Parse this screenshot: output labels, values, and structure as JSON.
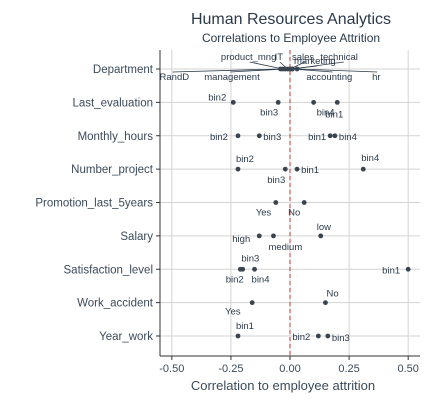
{
  "chart_data": {
    "type": "scatter",
    "title": "Human Resources Analytics",
    "subtitle": "Correlations to Employee Attrition",
    "xlabel": "Correlation to employee attrition",
    "ylabel": "",
    "xlim": [
      -0.55,
      0.55
    ],
    "xticks": [
      "-0.50",
      "-0.25",
      "0.00",
      "0.25",
      "0.50"
    ],
    "xtick_values": [
      -0.5,
      -0.25,
      0,
      0.25,
      0.5
    ],
    "grid": true,
    "zero_line_color": "#c0392b",
    "point_color": "#3a4450",
    "categories": [
      "Department",
      "Last_evaluation",
      "Monthly_hours",
      "Number_project",
      "Promotion_last_5years",
      "Salary",
      "Satisfaction_level",
      "Work_accident",
      "Year_work"
    ],
    "points": [
      {
        "category": "Department",
        "label": "product_mng",
        "x": -0.03
      },
      {
        "category": "Department",
        "label": "IT",
        "x": -0.01
      },
      {
        "category": "Department",
        "label": "sales",
        "x": 0.0
      },
      {
        "category": "Department",
        "label": "technical",
        "x": 0.01
      },
      {
        "category": "Department",
        "label": "RandD",
        "x": -0.04
      },
      {
        "category": "Department",
        "label": "management",
        "x": -0.02
      },
      {
        "category": "Department",
        "label": "accounting",
        "x": 0.01
      },
      {
        "category": "Department",
        "label": "hr",
        "x": 0.03
      },
      {
        "category": "Department",
        "label": "marketing",
        "x": 0.0
      },
      {
        "category": "Last_evaluation",
        "label": "bin2",
        "x": -0.24
      },
      {
        "category": "Last_evaluation",
        "label": "bin3",
        "x": -0.05
      },
      {
        "category": "Last_evaluation",
        "label": "bin4",
        "x": 0.1
      },
      {
        "category": "Last_evaluation",
        "label": "bin1",
        "x": 0.2
      },
      {
        "category": "Monthly_hours",
        "label": "bin2",
        "x": -0.22
      },
      {
        "category": "Monthly_hours",
        "label": "bin3",
        "x": -0.13
      },
      {
        "category": "Monthly_hours",
        "label": "bin1",
        "x": 0.17
      },
      {
        "category": "Monthly_hours",
        "label": "bin4",
        "x": 0.19
      },
      {
        "category": "Number_project",
        "label": "bin2",
        "x": -0.22
      },
      {
        "category": "Number_project",
        "label": "bin3",
        "x": -0.02
      },
      {
        "category": "Number_project",
        "label": "bin1",
        "x": 0.03
      },
      {
        "category": "Number_project",
        "label": "bin4",
        "x": 0.31
      },
      {
        "category": "Promotion_last_5years",
        "label": "Yes",
        "x": -0.06
      },
      {
        "category": "Promotion_last_5years",
        "label": "No",
        "x": 0.06
      },
      {
        "category": "Salary",
        "label": "high",
        "x": -0.13
      },
      {
        "category": "Salary",
        "label": "medium",
        "x": -0.07
      },
      {
        "category": "Salary",
        "label": "low",
        "x": 0.13
      },
      {
        "category": "Satisfaction_level",
        "label": "bin3",
        "x": -0.21
      },
      {
        "category": "Satisfaction_level",
        "label": "bin2",
        "x": -0.2
      },
      {
        "category": "Satisfaction_level",
        "label": "bin4",
        "x": -0.15
      },
      {
        "category": "Satisfaction_level",
        "label": "bin1",
        "x": 0.5
      },
      {
        "category": "Work_accident",
        "label": "Yes",
        "x": -0.16
      },
      {
        "category": "Work_accident",
        "label": "No",
        "x": 0.15
      },
      {
        "category": "Year_work",
        "label": "bin1",
        "x": -0.22
      },
      {
        "category": "Year_work",
        "label": "bin2",
        "x": 0.12
      },
      {
        "category": "Year_work",
        "label": "bin3",
        "x": 0.16
      }
    ]
  }
}
